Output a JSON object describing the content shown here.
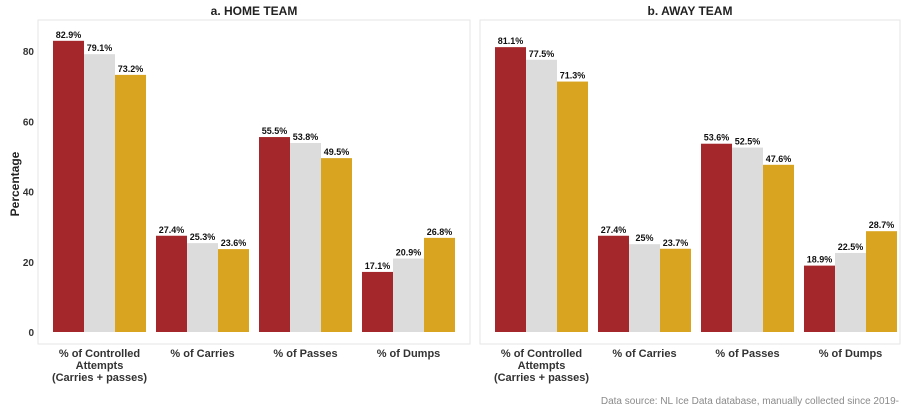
{
  "chart_data": {
    "type": "bar",
    "ylabel": "Percentage",
    "ylim": [
      0,
      87
    ],
    "yticks": [
      0,
      20,
      40,
      60,
      80
    ],
    "grid": false,
    "source": "Data source: NL Ice Data database, manually collected since 2019-",
    "series_colors": [
      "#A4282B",
      "#DCDCDC",
      "#D9A521"
    ],
    "categories": [
      [
        "% of Controlled",
        "Attempts",
        "(Carries + passes)"
      ],
      [
        "% of Carries"
      ],
      [
        "% of Passes"
      ],
      [
        "% of Dumps"
      ]
    ],
    "panels": [
      {
        "title": "a. HOME TEAM",
        "values": [
          [
            82.9,
            79.1,
            73.2
          ],
          [
            27.4,
            25.3,
            23.6
          ],
          [
            55.5,
            53.8,
            49.5
          ],
          [
            17.1,
            20.9,
            26.8
          ]
        ],
        "labels": [
          [
            "82.9%",
            "79.1%",
            "73.2%"
          ],
          [
            "27.4%",
            "25.3%",
            "23.6%"
          ],
          [
            "55.5%",
            "53.8%",
            "49.5%"
          ],
          [
            "17.1%",
            "20.9%",
            "26.8%"
          ]
        ]
      },
      {
        "title": "b. AWAY TEAM",
        "values": [
          [
            81.1,
            77.5,
            71.3
          ],
          [
            27.4,
            25,
            23.7
          ],
          [
            53.6,
            52.5,
            47.6
          ],
          [
            18.9,
            22.5,
            28.7
          ]
        ],
        "labels": [
          [
            "81.1%",
            "77.5%",
            "71.3%"
          ],
          [
            "27.4%",
            "25%",
            "23.7%"
          ],
          [
            "53.6%",
            "52.5%",
            "47.6%"
          ],
          [
            "18.9%",
            "22.5%",
            "28.7%"
          ]
        ]
      }
    ]
  }
}
